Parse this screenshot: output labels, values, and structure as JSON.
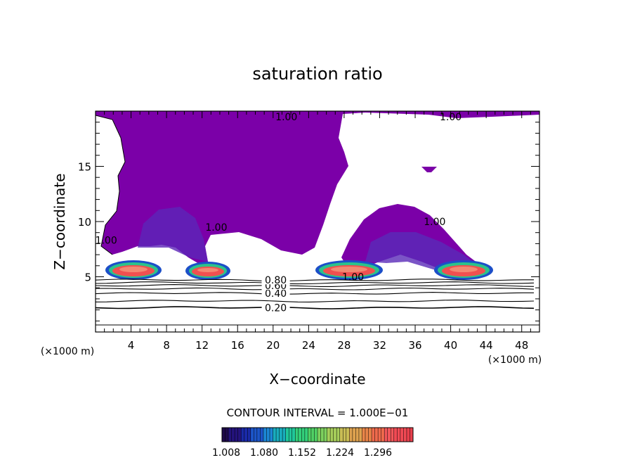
{
  "chart_data": {
    "type": "contour",
    "title": "saturation ratio",
    "xlabel": "X−coordinate",
    "ylabel": "Z−coordinate",
    "x_unit_left": "(×1000 m)",
    "x_unit_right": "(×1000 m)",
    "xlim": [
      0,
      50
    ],
    "ylim": [
      0,
      20
    ],
    "x_ticks": [
      4,
      8,
      12,
      16,
      20,
      24,
      28,
      32,
      36,
      40,
      44,
      48
    ],
    "x_tick_labels": [
      "4",
      "8",
      "12",
      "16",
      "20",
      "24",
      "28",
      "32",
      "36",
      "40",
      "44",
      "48"
    ],
    "y_ticks": [
      5,
      10,
      15
    ],
    "y_tick_labels": [
      "5",
      "10",
      "15"
    ],
    "contour_interval_text": "CONTOUR INTERVAL = 1.000E−01",
    "contour_lines": [
      {
        "value": 0.2,
        "label": "0.20",
        "z": 2.2
      },
      {
        "value": 0.3,
        "label": "",
        "z": 2.8
      },
      {
        "value": 0.4,
        "label": "0.40",
        "z": 3.5
      },
      {
        "value": 0.5,
        "label": "",
        "z": 3.9
      },
      {
        "value": 0.6,
        "label": "0.60",
        "z": 4.2
      },
      {
        "value": 0.7,
        "label": "",
        "z": 4.45
      },
      {
        "value": 0.8,
        "label": "0.80",
        "z": 4.7
      }
    ],
    "boundary_labels": [
      {
        "text": "1.00",
        "x": 21.5,
        "z": 19.5
      },
      {
        "text": "1.00",
        "x": 40.0,
        "z": 19.5
      },
      {
        "text": "1.00",
        "x": 1.2,
        "z": 8.3
      },
      {
        "text": "1.00",
        "x": 13.6,
        "z": 9.5
      },
      {
        "text": "1.00",
        "x": 38.2,
        "z": 10.0
      },
      {
        "text": "1.00",
        "x": 29.0,
        "z": 5.0
      }
    ],
    "colorbar": {
      "colors": [
        "#1e0a4a",
        "#24137c",
        "#1a2aa8",
        "#1c55c8",
        "#1c86d4",
        "#19acbd",
        "#20c69a",
        "#33cf7a",
        "#50d065",
        "#7ed15e",
        "#a6cd5a",
        "#c9bd55",
        "#dea24f",
        "#e88448",
        "#ef6a4c",
        "#f2575a",
        "#f04a54",
        "#e8404c"
      ],
      "tick_labels": [
        "1.008",
        "1.080",
        "1.152",
        "1.224",
        "1.296"
      ]
    },
    "colors": {
      "saturated_fill": "#7b00a8",
      "core_red": "#f05050",
      "core_salmon": "#f28a72"
    }
  }
}
